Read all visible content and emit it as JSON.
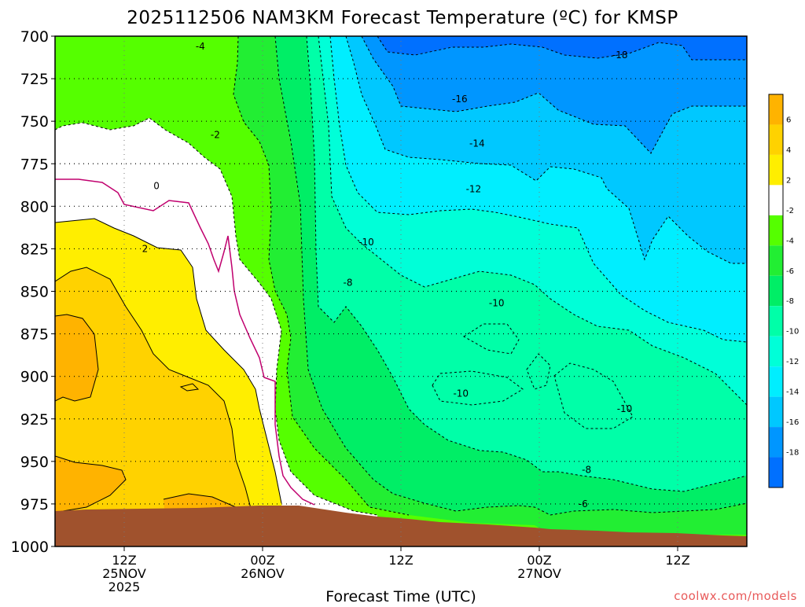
{
  "title": "2025112506 NAM3KM Forecast Temperature (ºC) for KMSP",
  "xlabel": "Forecast Time (UTC)",
  "watermark": "coolwx.com/models",
  "chart_data": {
    "type": "heatmap",
    "title": "2025112506 NAM3KM Forecast Temperature (ºC) for KMSP",
    "xlabel": "Forecast Time (UTC)",
    "ylabel": "",
    "x_range_hours": [
      0,
      60
    ],
    "x_ticks": [
      {
        "hour": 6,
        "lines": [
          "12Z",
          "25NOV",
          "2025"
        ]
      },
      {
        "hour": 18,
        "lines": [
          "00Z",
          "26NOV"
        ]
      },
      {
        "hour": 30,
        "lines": [
          "12Z"
        ]
      },
      {
        "hour": 42,
        "lines": [
          "00Z",
          "27NOV"
        ]
      },
      {
        "hour": 54,
        "lines": [
          "12Z"
        ]
      }
    ],
    "y_ticks": [
      700,
      725,
      750,
      775,
      800,
      825,
      850,
      875,
      900,
      925,
      950,
      975,
      1000
    ],
    "ylim": [
      1000,
      700
    ],
    "grid": true,
    "colorbar": {
      "labels": [
        "6",
        "4",
        "2",
        "-2",
        "-4",
        "-6",
        "-8",
        "-10",
        "-12",
        "-14",
        "-16",
        "-18"
      ],
      "colors": [
        "#ffb300",
        "#ffd200",
        "#ffee00",
        "#ffffff",
        "#55ff00",
        "#22ee33",
        "#00ee66",
        "#00ffa8",
        "#00ffd8",
        "#00eeff",
        "#00c8ff",
        "#0096ff",
        "#0070ff"
      ]
    },
    "contour_labels": [
      {
        "text": "-18",
        "t": 49.0,
        "p": 711
      },
      {
        "text": "-16",
        "t": 35.1,
        "p": 737
      },
      {
        "text": "-14",
        "t": 36.6,
        "p": 763
      },
      {
        "text": "-12",
        "t": 36.3,
        "p": 790
      },
      {
        "text": "-10",
        "t": 27.0,
        "p": 821
      },
      {
        "text": "-10",
        "t": 38.3,
        "p": 857
      },
      {
        "text": "-8",
        "t": 25.4,
        "p": 845
      },
      {
        "text": "-10",
        "t": 35.2,
        "p": 910
      },
      {
        "text": "-10",
        "t": 49.4,
        "p": 919
      },
      {
        "text": "-8",
        "t": 46.1,
        "p": 955
      },
      {
        "text": "-6",
        "t": 45.8,
        "p": 975
      },
      {
        "text": "-4",
        "t": 12.6,
        "p": 706
      },
      {
        "text": "-2",
        "t": 13.9,
        "p": 758
      },
      {
        "text": "0",
        "t": 8.8,
        "p": 788
      },
      {
        "text": "2",
        "t": 7.8,
        "p": 825
      }
    ]
  }
}
